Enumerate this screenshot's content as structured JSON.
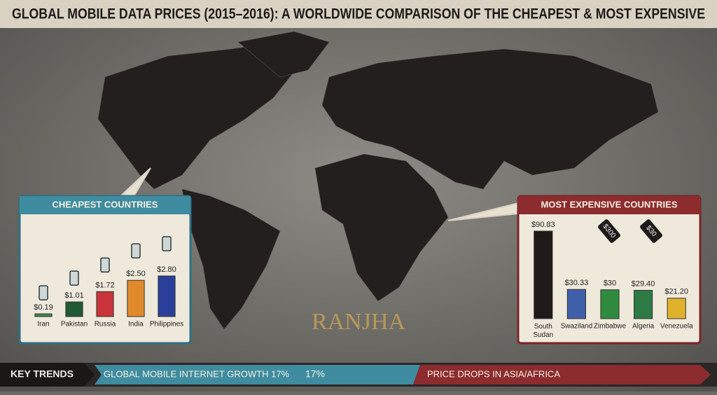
{
  "title": "GLOBAL MOBILE DATA PRICES (2015–2016): A WORLDWIDE COMPARISON OF THE CHEAPEST & MOST EXPENSIVE",
  "chart_data": [
    {
      "type": "bar",
      "title": "CHEAPEST COUNTRIES",
      "categories": [
        "Iran",
        "Pakistan",
        "Russia",
        "India",
        "Philippines"
      ],
      "values": [
        0.19,
        1.01,
        1.72,
        2.5,
        2.8
      ],
      "value_labels": [
        "$0.19",
        "$1.01",
        "$1.72",
        "$2.50",
        "$2.80"
      ],
      "colors": [
        "#3f8a4a",
        "#1f5a32",
        "#c8343a",
        "#e08a2c",
        "#2a3f9a"
      ]
    },
    {
      "type": "bar",
      "title": "MOST EXPENSIVE COUNTRIES",
      "categories": [
        "South Sudan",
        "Swaziland",
        "Zimbabwe",
        "Algeria",
        "Venezuela"
      ],
      "values": [
        90.83,
        30.33,
        30,
        29.4,
        21.2
      ],
      "value_labels": [
        "$90.83",
        "$30.33",
        "$30",
        "$29.40",
        "$21.20"
      ],
      "colors": [
        "#1d1a18",
        "#3f5fa8",
        "#2f8a3e",
        "#2d7a44",
        "#e0b22c"
      ]
    }
  ],
  "price_tags": [
    "$300",
    "$30"
  ],
  "brand": "RANJHA",
  "key_trends": {
    "label": "KEY TRENDS",
    "growth": "GLOBAL MOBILE INTERNET GROWTH 17%",
    "growth_value": "17%",
    "drops": "PRICE DROPS IN ASIA/AFRICA"
  }
}
